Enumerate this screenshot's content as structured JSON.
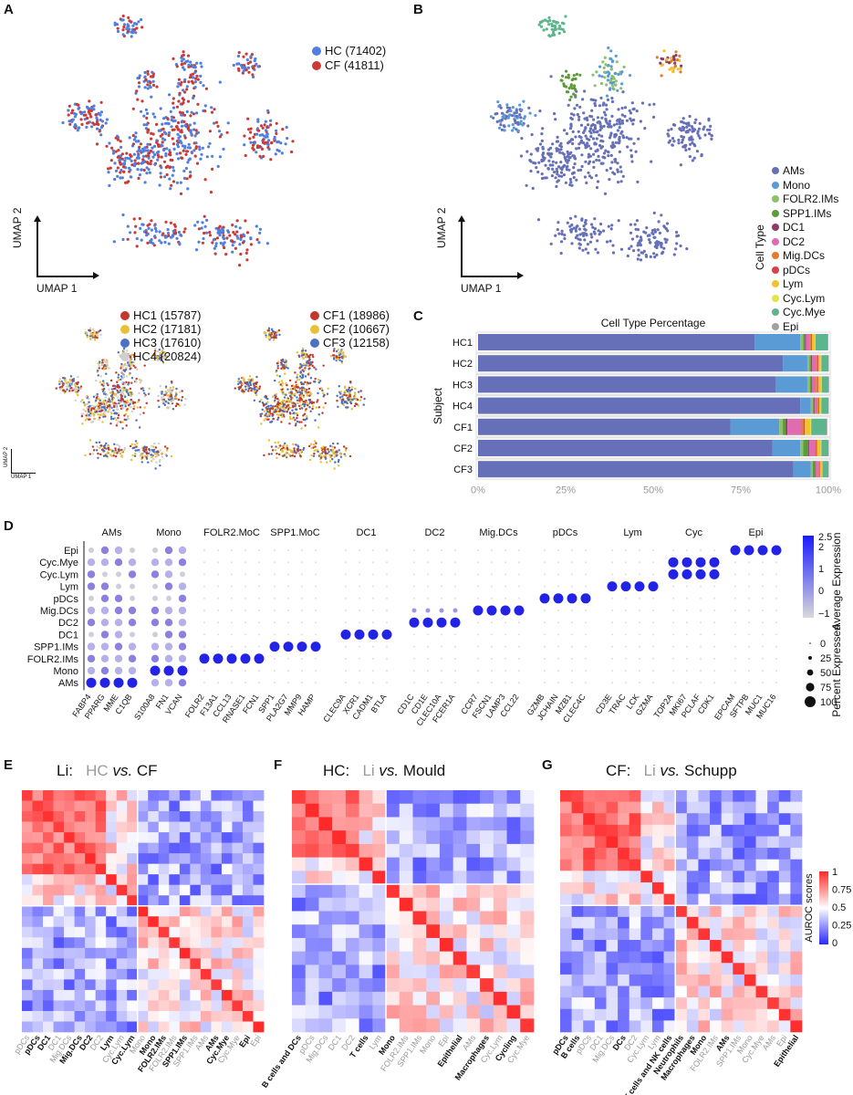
{
  "panels": {
    "A": "A",
    "B": "B",
    "C": "C",
    "D": "D",
    "E": "E",
    "F": "F",
    "G": "G"
  },
  "umap": {
    "ylabel": "UMAP 2",
    "xlabel": "UMAP 1"
  },
  "legend_A": [
    {
      "label": "HC (71402)",
      "color": "#4f7fe0"
    },
    {
      "label": "CF (41811)",
      "color": "#cc3a35"
    }
  ],
  "legend_hc": [
    {
      "label": "HC1 (15787)",
      "color": "#c0392b"
    },
    {
      "label": "HC2 (17181)",
      "color": "#e8c13a"
    },
    {
      "label": "HC3 (17610)",
      "color": "#4a72c0"
    },
    {
      "label": "HC4 (20824)",
      "color": "#cfcfcf"
    }
  ],
  "legend_cf": [
    {
      "label": "CF1 (18986)",
      "color": "#c0392b"
    },
    {
      "label": "CF2 (10667)",
      "color": "#e8c13a"
    },
    {
      "label": "CF3 (12158)",
      "color": "#4a72c0"
    }
  ],
  "celltype": {
    "title": "Cell Type",
    "items": [
      {
        "label": "AMs",
        "color": "#6670b8"
      },
      {
        "label": "Mono",
        "color": "#5b9bd5"
      },
      {
        "label": "FOLR2.IMs",
        "color": "#8cc267"
      },
      {
        "label": "SPP1.IMs",
        "color": "#5c9a3a"
      },
      {
        "label": "DC1",
        "color": "#8e3b6a"
      },
      {
        "label": "DC2",
        "color": "#e06bb0"
      },
      {
        "label": "Mig.DCs",
        "color": "#e27b2f"
      },
      {
        "label": "pDCs",
        "color": "#d9404a"
      },
      {
        "label": "Lym",
        "color": "#f2c230"
      },
      {
        "label": "Cyc.Lym",
        "color": "#e5e24a"
      },
      {
        "label": "Cyc.Mye",
        "color": "#5db58e"
      },
      {
        "label": "Epi",
        "color": "#a0a0a0"
      }
    ]
  },
  "panelC": {
    "title": "Cell Type Percentage",
    "ylabel": "Subject",
    "xticks": [
      "0%",
      "25%",
      "50%",
      "75%",
      "100%"
    ]
  },
  "chart_data": [
    {
      "type": "bar",
      "title": "Cell Type Percentage",
      "ylabel": "Subject",
      "orientation": "horizontal-stacked",
      "categories": [
        "HC1",
        "HC2",
        "HC3",
        "HC4",
        "CF1",
        "CF2",
        "CF3"
      ],
      "series": [
        {
          "name": "AMs",
          "values": [
            79,
            87,
            85,
            92,
            72,
            84,
            90
          ]
        },
        {
          "name": "Mono",
          "values": [
            13,
            7,
            9,
            3,
            14,
            8,
            5
          ]
        },
        {
          "name": "FOLR2.IMs",
          "values": [
            0.8,
            0.6,
            0.7,
            0.6,
            1.0,
            0.8,
            0.5
          ]
        },
        {
          "name": "SPP1.IMs",
          "values": [
            0.5,
            0.4,
            0.4,
            0.3,
            0.8,
            1.5,
            0.6
          ]
        },
        {
          "name": "DC1",
          "values": [
            0.3,
            0.3,
            0.3,
            0.2,
            0.5,
            0.3,
            0.2
          ]
        },
        {
          "name": "DC2",
          "values": [
            1.0,
            1.2,
            1.0,
            0.8,
            4.0,
            1.5,
            0.8
          ]
        },
        {
          "name": "Mig.DCs",
          "values": [
            0.4,
            0.4,
            0.4,
            0.3,
            0.6,
            0.4,
            0.3
          ]
        },
        {
          "name": "pDCs",
          "values": [
            0.3,
            0.3,
            0.3,
            0.2,
            0.4,
            0.3,
            0.2
          ]
        },
        {
          "name": "Lym",
          "values": [
            0.8,
            0.6,
            0.8,
            0.5,
            1.5,
            1.0,
            0.6
          ]
        },
        {
          "name": "Cyc.Lym",
          "values": [
            0.2,
            0.2,
            0.2,
            0.1,
            0.3,
            0.2,
            0.1
          ]
        },
        {
          "name": "Cyc.Mye",
          "values": [
            3.5,
            2.0,
            1.9,
            2.0,
            4.4,
            2.0,
            1.7
          ]
        },
        {
          "name": "Epi",
          "values": [
            0.2,
            0.1,
            0.2,
            0.1,
            0.2,
            0.1,
            0.1
          ]
        }
      ],
      "xlim": [
        0,
        100
      ]
    }
  ],
  "panelD": {
    "rows": [
      "Epi",
      "Cyc.Mye",
      "Cyc.Lym",
      "Lym",
      "pDCs",
      "Mig.DCs",
      "DC2",
      "DC1",
      "SPP1.IMs",
      "FOLR2.IMs",
      "Mono",
      "AMs"
    ],
    "groups": [
      {
        "name": "AMs",
        "genes": [
          "FABP4",
          "PPARG",
          "MME",
          "C1QB"
        ]
      },
      {
        "name": "Mono",
        "genes": [
          "S100A8",
          "FN1",
          "VCAN"
        ]
      },
      {
        "name": "FOLR2.MoC",
        "genes": [
          "FOLR2",
          "F13A1",
          "CCL13",
          "RNASE1",
          "FCN1"
        ]
      },
      {
        "name": "SPP1.MoC",
        "genes": [
          "SPP1",
          "PLA2G7",
          "MMP9",
          "HAMP"
        ]
      },
      {
        "name": "DC1",
        "genes": [
          "CLEC9A",
          "XCR1",
          "CADM1",
          "BTLA"
        ]
      },
      {
        "name": "DC2",
        "genes": [
          "CD1C",
          "CD1E",
          "CLEC10A",
          "FCER1A"
        ]
      },
      {
        "name": "Mig.DCs",
        "genes": [
          "CCR7",
          "FSCN1",
          "LAMP3",
          "CCL22"
        ]
      },
      {
        "name": "pDCs",
        "genes": [
          "GZMB",
          "JCHAIN",
          "MZB1",
          "CLEC4C"
        ]
      },
      {
        "name": "Lym",
        "genes": [
          "CD3E",
          "TRAC",
          "LCK",
          "GZMA"
        ]
      },
      {
        "name": "Cyc",
        "genes": [
          "TOP2A",
          "MKI67",
          "PCLAF",
          "CDK1"
        ]
      },
      {
        "name": "Epi",
        "genes": [
          "EPCAM",
          "SFTPB",
          "MUC1",
          "MUC16"
        ]
      }
    ],
    "avg_title": "Average Expression",
    "avg_ticks": [
      "2.5",
      "2",
      "1",
      "0",
      "−1"
    ],
    "pct_title": "Percent Expressed",
    "pct_ticks": [
      "0",
      "25",
      "50",
      "75",
      "100"
    ]
  },
  "panelE": {
    "title_prefix": "Li:",
    "title_a": "HC",
    "title_vs": "vs.",
    "title_b": "CF",
    "labels": [
      {
        "t": "pDCs",
        "g": true
      },
      {
        "t": "pDCs",
        "g": false
      },
      {
        "t": "DC1",
        "g": false
      },
      {
        "t": "DC1",
        "g": true
      },
      {
        "t": "Mig.DCs",
        "g": true
      },
      {
        "t": "Mig.DCs",
        "g": false
      },
      {
        "t": "DC2",
        "g": false
      },
      {
        "t": "DC2",
        "g": true
      },
      {
        "t": "Lym",
        "g": false
      },
      {
        "t": "Cyc.Lym",
        "g": true
      },
      {
        "t": "Cyc.Lym",
        "g": false
      },
      {
        "t": "Mono",
        "g": true
      },
      {
        "t": "Mono",
        "g": false
      },
      {
        "t": "FOLR2.IMs",
        "g": false
      },
      {
        "t": "FOLR2.IMs",
        "g": true
      },
      {
        "t": "SPP1.IMs",
        "g": false
      },
      {
        "t": "SPP1.IMs",
        "g": true
      },
      {
        "t": "AMs",
        "g": true
      },
      {
        "t": "AMs",
        "g": false
      },
      {
        "t": "Cyc.Mye",
        "g": false
      },
      {
        "t": "Cyc.Mye",
        "g": true
      },
      {
        "t": "Epi",
        "g": false
      },
      {
        "t": "Epi",
        "g": true
      }
    ]
  },
  "panelF": {
    "title_prefix": "HC:",
    "title_a": "Li",
    "title_vs": "vs.",
    "title_b": "Mould",
    "labels": [
      {
        "t": "B cells and DCs",
        "g": false
      },
      {
        "t": "pDCs",
        "g": true
      },
      {
        "t": "Mig.DCs",
        "g": true
      },
      {
        "t": "DC1",
        "g": true
      },
      {
        "t": "DC2",
        "g": true
      },
      {
        "t": "T cells",
        "g": false
      },
      {
        "t": "Lym",
        "g": true
      },
      {
        "t": "Mono",
        "g": false
      },
      {
        "t": "FOLR2.IMs",
        "g": true
      },
      {
        "t": "SPP1.IMs",
        "g": true
      },
      {
        "t": "Mono",
        "g": true
      },
      {
        "t": "Epi",
        "g": true
      },
      {
        "t": "Epithelial",
        "g": false
      },
      {
        "t": "AMs",
        "g": true
      },
      {
        "t": "Macrophages",
        "g": false
      },
      {
        "t": "Cyc.Lym",
        "g": true
      },
      {
        "t": "Cycling",
        "g": false
      },
      {
        "t": "Cyc.Mye",
        "g": true
      }
    ]
  },
  "panelG": {
    "title_prefix": "CF:",
    "title_a": "Li",
    "title_vs": "vs.",
    "title_b": "Schupp",
    "labels": [
      {
        "t": "pDCs",
        "g": false
      },
      {
        "t": "B cells",
        "g": false
      },
      {
        "t": "pDCs",
        "g": true
      },
      {
        "t": "DC1",
        "g": true
      },
      {
        "t": "Mig.DCs",
        "g": true
      },
      {
        "t": "DCs",
        "g": false
      },
      {
        "t": "DC2",
        "g": true
      },
      {
        "t": "Cyc.Lym",
        "g": true
      },
      {
        "t": "Lym",
        "g": true
      },
      {
        "t": "T cells and NK cells",
        "g": false
      },
      {
        "t": "Neutrophils",
        "g": false
      },
      {
        "t": "Macrophages",
        "g": false
      },
      {
        "t": "Mono",
        "g": false
      },
      {
        "t": "FOLR2.IMs",
        "g": true
      },
      {
        "t": "AMs",
        "g": false
      },
      {
        "t": "SPP1.IMs",
        "g": true
      },
      {
        "t": "Mono",
        "g": true
      },
      {
        "t": "Cyc.Mye",
        "g": true
      },
      {
        "t": "AMs",
        "g": true
      },
      {
        "t": "Epi",
        "g": true
      },
      {
        "t": "Epithelial",
        "g": false
      }
    ],
    "cbar_title": "AUROC scores",
    "cbar_ticks": [
      "1",
      "0.75",
      "0.5",
      "0.25",
      "0"
    ]
  }
}
